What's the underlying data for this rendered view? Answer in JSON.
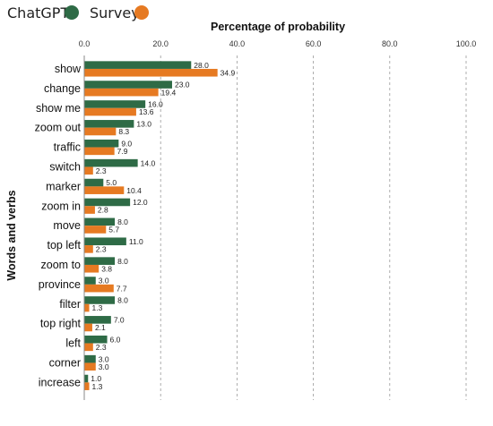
{
  "chart_data": {
    "type": "bar",
    "orientation": "horizontal",
    "title": "",
    "xlabel": "Percentage of probability",
    "ylabel": "Words and verbs",
    "xlim": [
      0,
      100
    ],
    "x_ticks": [
      "0.0",
      "20.0",
      "40.0",
      "60.0",
      "80.0",
      "100.0"
    ],
    "x_axis_position": "top",
    "grid": "vertical dashed",
    "legend_position": "top-left",
    "categories": [
      "show",
      "change",
      "show me",
      "zoom out",
      "traffic",
      "switch",
      "marker",
      "zoom in",
      "move",
      "top left",
      "zoom to",
      "province",
      "filter",
      "top right",
      "left",
      "corner",
      "increase"
    ],
    "series": [
      {
        "name": "ChatGPT",
        "color": "#2e6b46",
        "values": [
          28.0,
          23.0,
          16.0,
          13.0,
          9.0,
          14.0,
          5.0,
          12.0,
          8.0,
          11.0,
          8.0,
          3.0,
          8.0,
          7.0,
          6.0,
          3.0,
          1.0
        ],
        "labels": [
          "28.0",
          "23.0",
          "16.0",
          "13.0",
          "9.0",
          "14.0",
          "5.0",
          "12.0",
          "8.0",
          "11.0",
          "8.0",
          "3.0",
          "8.0",
          "7.0",
          "6.0",
          "3.0",
          "1.0"
        ]
      },
      {
        "name": "Survey",
        "color": "#e67a22",
        "values": [
          34.9,
          19.4,
          13.6,
          8.3,
          7.9,
          2.3,
          10.4,
          2.8,
          5.7,
          2.3,
          3.8,
          7.7,
          1.3,
          2.1,
          2.3,
          3.0,
          1.3
        ],
        "labels": [
          "34.9",
          "19.4",
          "13.6",
          "8.3",
          "7.9",
          "2.3",
          "10.4",
          "2.8",
          "5.7",
          "2.3",
          "3.8",
          "7.7",
          "1.3",
          "2.1",
          "2.3",
          "3.0",
          "1.3"
        ]
      }
    ]
  }
}
